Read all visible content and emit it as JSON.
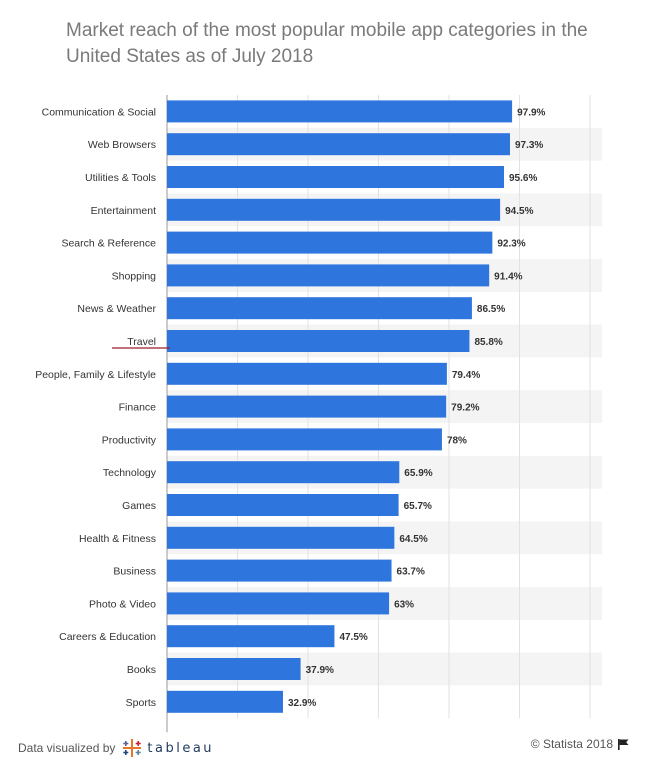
{
  "title": "Market reach of the most popular mobile app categories in the United States as of July 2018",
  "footer": {
    "prefix": "Data visualized by",
    "brand": "tableau",
    "copyright": "© Statista 2018"
  },
  "colors": {
    "bar": "#2f75de",
    "stripe": "#f4f4f4",
    "grid": "#e2e2e2",
    "underline": "#9b1c2e"
  },
  "chart_data": {
    "type": "bar",
    "orientation": "horizontal",
    "title": "Market reach of the most popular mobile app categories in the United States as of July 2018",
    "categories": [
      "Communication & Social",
      "Web Browsers",
      "Utilities & Tools",
      "Entertainment",
      "Search & Reference",
      "Shopping",
      "News & Weather",
      "Travel",
      "People, Family & Lifestyle",
      "Finance",
      "Productivity",
      "Technology",
      "Games",
      "Health & Fitness",
      "Business",
      "Photo & Video",
      "Careers & Education",
      "Books",
      "Sports"
    ],
    "values": [
      97.9,
      97.3,
      95.6,
      94.5,
      92.3,
      91.4,
      86.5,
      85.8,
      79.4,
      79.2,
      78,
      65.9,
      65.7,
      64.5,
      63.7,
      63,
      47.5,
      37.9,
      32.9
    ],
    "value_labels": [
      "97.9%",
      "97.3%",
      "95.6%",
      "94.5%",
      "92.3%",
      "91.4%",
      "86.5%",
      "85.8%",
      "79.4%",
      "79.2%",
      "78%",
      "65.9%",
      "65.7%",
      "64.5%",
      "63.7%",
      "63%",
      "47.5%",
      "37.9%",
      "32.9%"
    ],
    "xlim": [
      0,
      120
    ],
    "grid": true,
    "highlighted_category": "Travel"
  }
}
